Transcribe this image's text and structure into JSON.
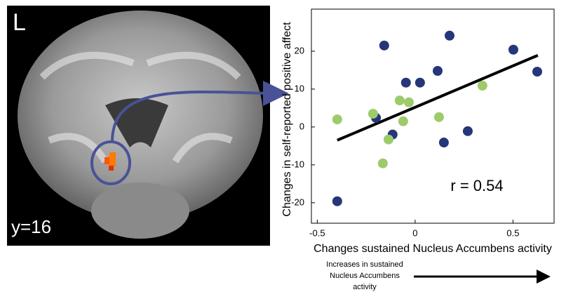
{
  "chart_data": {
    "type": "scatter",
    "panel_labels": {
      "hemisphere": "L",
      "slice": "y=16"
    },
    "xlabel": "Changes sustained Nucleus Accumbens activity",
    "ylabel": "Changes in self-reported positive affect",
    "annotation": "r = 0.54",
    "note_lines": [
      "Increases in sustained",
      "Nucleus Accumbens",
      "activity"
    ],
    "xlim": [
      -0.53,
      0.71
    ],
    "ylim": [
      -25.4,
      31.1
    ],
    "xticks": [
      -0.5,
      0,
      0.5
    ],
    "yticks": [
      -20,
      -10,
      0,
      10,
      20
    ],
    "series": [
      {
        "color": "#263679",
        "x": [
          -0.158,
          0.176,
          -0.2,
          -0.047,
          0.025,
          0.115,
          0.502,
          0.624,
          -0.115,
          0.147,
          0.269,
          -0.398
        ],
        "y": [
          21.5,
          24.1,
          2.4,
          11.7,
          11.7,
          14.8,
          20.4,
          14.6,
          -2.0,
          -4.1,
          -1.1,
          -19.6
        ]
      },
      {
        "color": "#9dcb6b",
        "x": [
          -0.398,
          -0.215,
          -0.079,
          -0.032,
          -0.061,
          -0.136,
          -0.165,
          0.122,
          0.344
        ],
        "y": [
          2.0,
          3.5,
          7.0,
          6.5,
          1.5,
          -3.3,
          -9.6,
          2.6,
          10.9
        ]
      }
    ],
    "fit": {
      "color": "#000000",
      "x": [
        -0.398,
        0.627
      ],
      "y": [
        -3.5,
        18.9
      ]
    }
  }
}
